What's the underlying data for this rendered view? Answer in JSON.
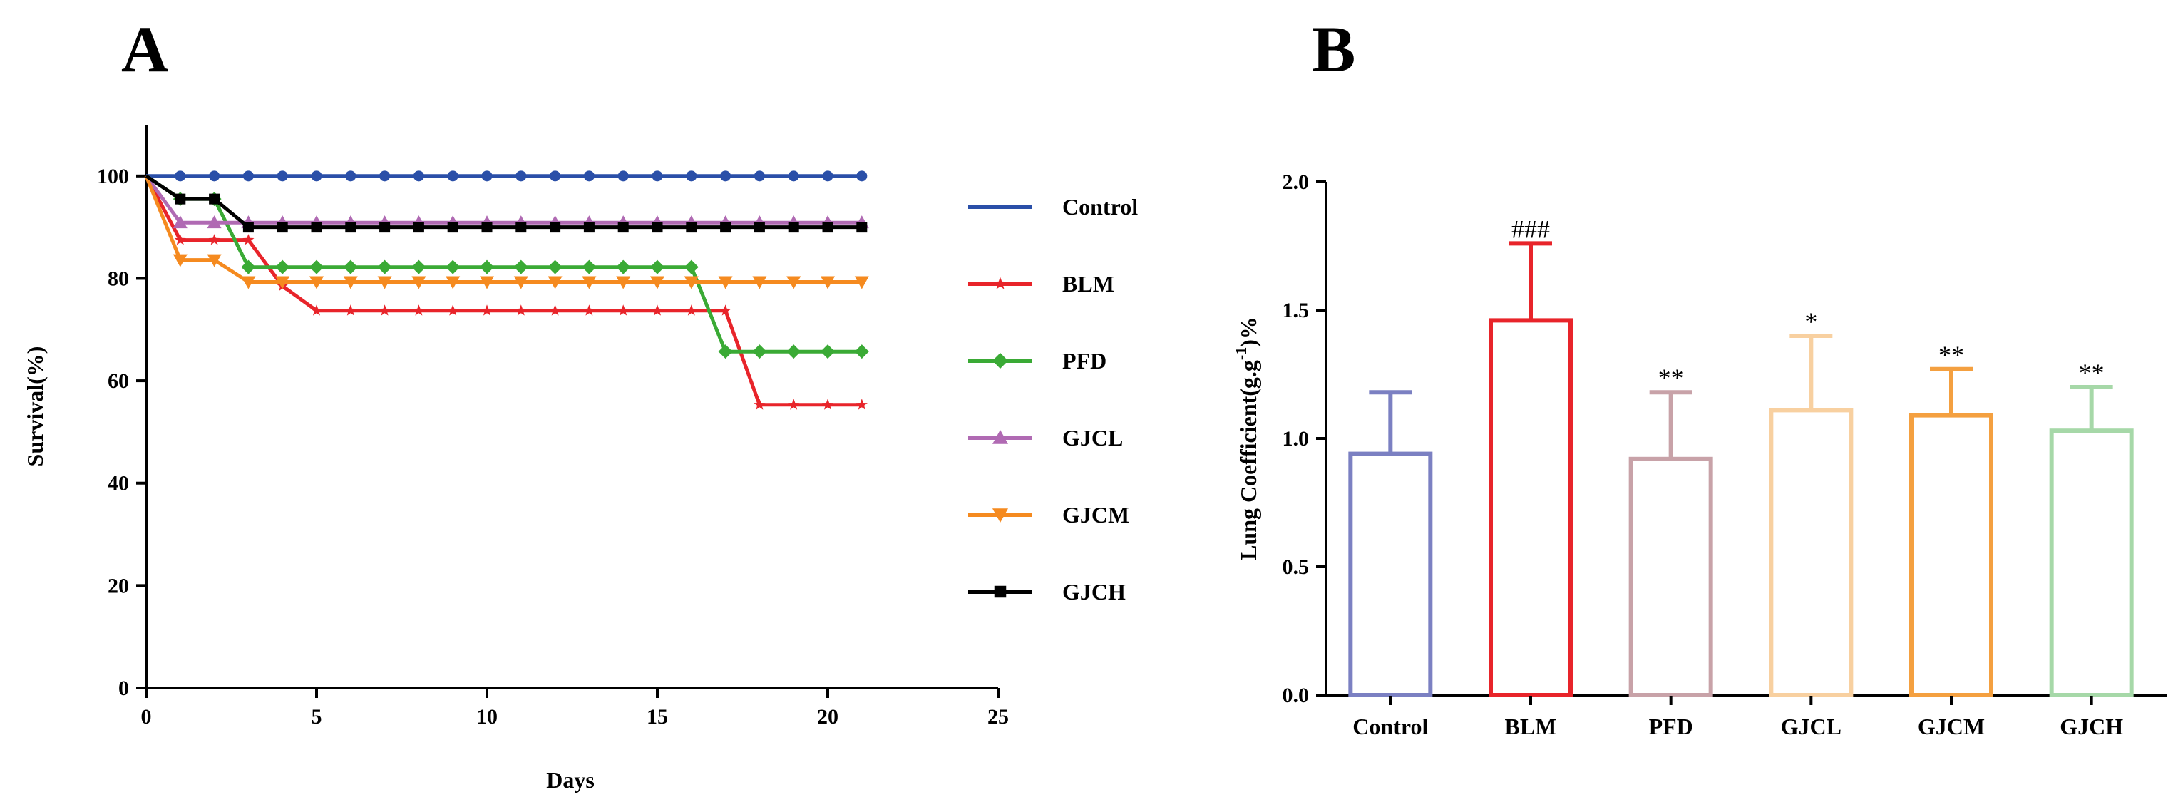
{
  "panel_a_letter": "A",
  "panel_b_letter": "B",
  "chart_data": [
    {
      "type": "line",
      "xlabel": "Days",
      "ylabel": "Survival(%)",
      "xlim": [
        0,
        25
      ],
      "ylim": [
        0,
        110
      ],
      "xticks": [
        0,
        5,
        10,
        15,
        20,
        25
      ],
      "yticks": [
        0,
        20,
        40,
        60,
        80,
        100
      ],
      "legend_position": "right",
      "series": [
        {
          "name": "Control",
          "color": "#2a4fa8",
          "marker": "circle",
          "x": [
            0,
            1,
            2,
            3,
            4,
            5,
            6,
            7,
            8,
            9,
            10,
            11,
            12,
            13,
            14,
            15,
            16,
            17,
            18,
            19,
            20,
            21
          ],
          "y": [
            100,
            100,
            100,
            100,
            100,
            100,
            100,
            100,
            100,
            100,
            100,
            100,
            100,
            100,
            100,
            100,
            100,
            100,
            100,
            100,
            100,
            100
          ]
        },
        {
          "name": "BLM",
          "color": "#e8242a",
          "marker": "star",
          "x": [
            0,
            1,
            2,
            3,
            4,
            5,
            6,
            7,
            8,
            9,
            10,
            11,
            12,
            13,
            14,
            15,
            16,
            17,
            18,
            19,
            20,
            21
          ],
          "y": [
            100,
            87.5,
            87.5,
            87.5,
            78.5,
            73.7,
            73.7,
            73.7,
            73.7,
            73.7,
            73.7,
            73.7,
            73.7,
            73.7,
            73.7,
            73.7,
            73.7,
            73.7,
            55.3,
            55.3,
            55.3,
            55.3
          ]
        },
        {
          "name": "PFD",
          "color": "#3aaa35",
          "marker": "diamond",
          "x": [
            0,
            1,
            2,
            3,
            4,
            5,
            6,
            7,
            8,
            9,
            10,
            11,
            12,
            13,
            14,
            15,
            16,
            17,
            18,
            19,
            20,
            21
          ],
          "y": [
            100,
            95.5,
            95.5,
            82.2,
            82.2,
            82.2,
            82.2,
            82.2,
            82.2,
            82.2,
            82.2,
            82.2,
            82.2,
            82.2,
            82.2,
            82.2,
            82.2,
            65.7,
            65.7,
            65.7,
            65.7,
            65.7
          ]
        },
        {
          "name": "GJCL",
          "color": "#b06ab3",
          "marker": "triangle",
          "x": [
            0,
            1,
            2,
            3,
            4,
            5,
            6,
            7,
            8,
            9,
            10,
            11,
            12,
            13,
            14,
            15,
            16,
            17,
            18,
            19,
            20,
            21
          ],
          "y": [
            100,
            90.9,
            90.9,
            90.9,
            90.9,
            90.9,
            90.9,
            90.9,
            90.9,
            90.9,
            90.9,
            90.9,
            90.9,
            90.9,
            90.9,
            90.9,
            90.9,
            90.9,
            90.9,
            90.9,
            90.9,
            90.9
          ]
        },
        {
          "name": "GJCM",
          "color": "#f58a1f",
          "marker": "triangle-down",
          "x": [
            0,
            1,
            2,
            3,
            4,
            5,
            6,
            7,
            8,
            9,
            10,
            11,
            12,
            13,
            14,
            15,
            16,
            17,
            18,
            19,
            20,
            21
          ],
          "y": [
            100,
            83.6,
            83.6,
            79.3,
            79.3,
            79.3,
            79.3,
            79.3,
            79.3,
            79.3,
            79.3,
            79.3,
            79.3,
            79.3,
            79.3,
            79.3,
            79.3,
            79.3,
            79.3,
            79.3,
            79.3,
            79.3
          ]
        },
        {
          "name": "GJCH",
          "color": "#000000",
          "marker": "square",
          "x": [
            0,
            1,
            2,
            3,
            4,
            5,
            6,
            7,
            8,
            9,
            10,
            11,
            12,
            13,
            14,
            15,
            16,
            17,
            18,
            19,
            20,
            21
          ],
          "y": [
            100,
            95.5,
            95.5,
            90,
            90,
            90,
            90,
            90,
            90,
            90,
            90,
            90,
            90,
            90,
            90,
            90,
            90,
            90,
            90,
            90,
            90,
            90
          ]
        }
      ]
    },
    {
      "type": "bar",
      "xlabel": "",
      "ylabel": "Lung Coefficient(g.g",
      "ylabel_superscript": "-1",
      "ylabel_suffix": ")%",
      "ylim": [
        0,
        2.0
      ],
      "yticks": [
        "0.0",
        "0.5",
        "1.0",
        "1.5",
        "2.0"
      ],
      "categories": [
        "Control",
        "BLM",
        "PFD",
        "GJCL",
        "GJCM",
        "GJCH"
      ],
      "values": [
        0.94,
        1.46,
        0.92,
        1.11,
        1.09,
        1.03
      ],
      "errors": [
        0.24,
        0.3,
        0.26,
        0.29,
        0.18,
        0.17
      ],
      "significance": [
        "",
        "###",
        "**",
        "*",
        "**",
        "**"
      ],
      "colors": [
        "#7b80c2",
        "#e8242a",
        "#c8a2a8",
        "#f8d0a0",
        "#f4a040",
        "#a6d8a8"
      ]
    }
  ]
}
